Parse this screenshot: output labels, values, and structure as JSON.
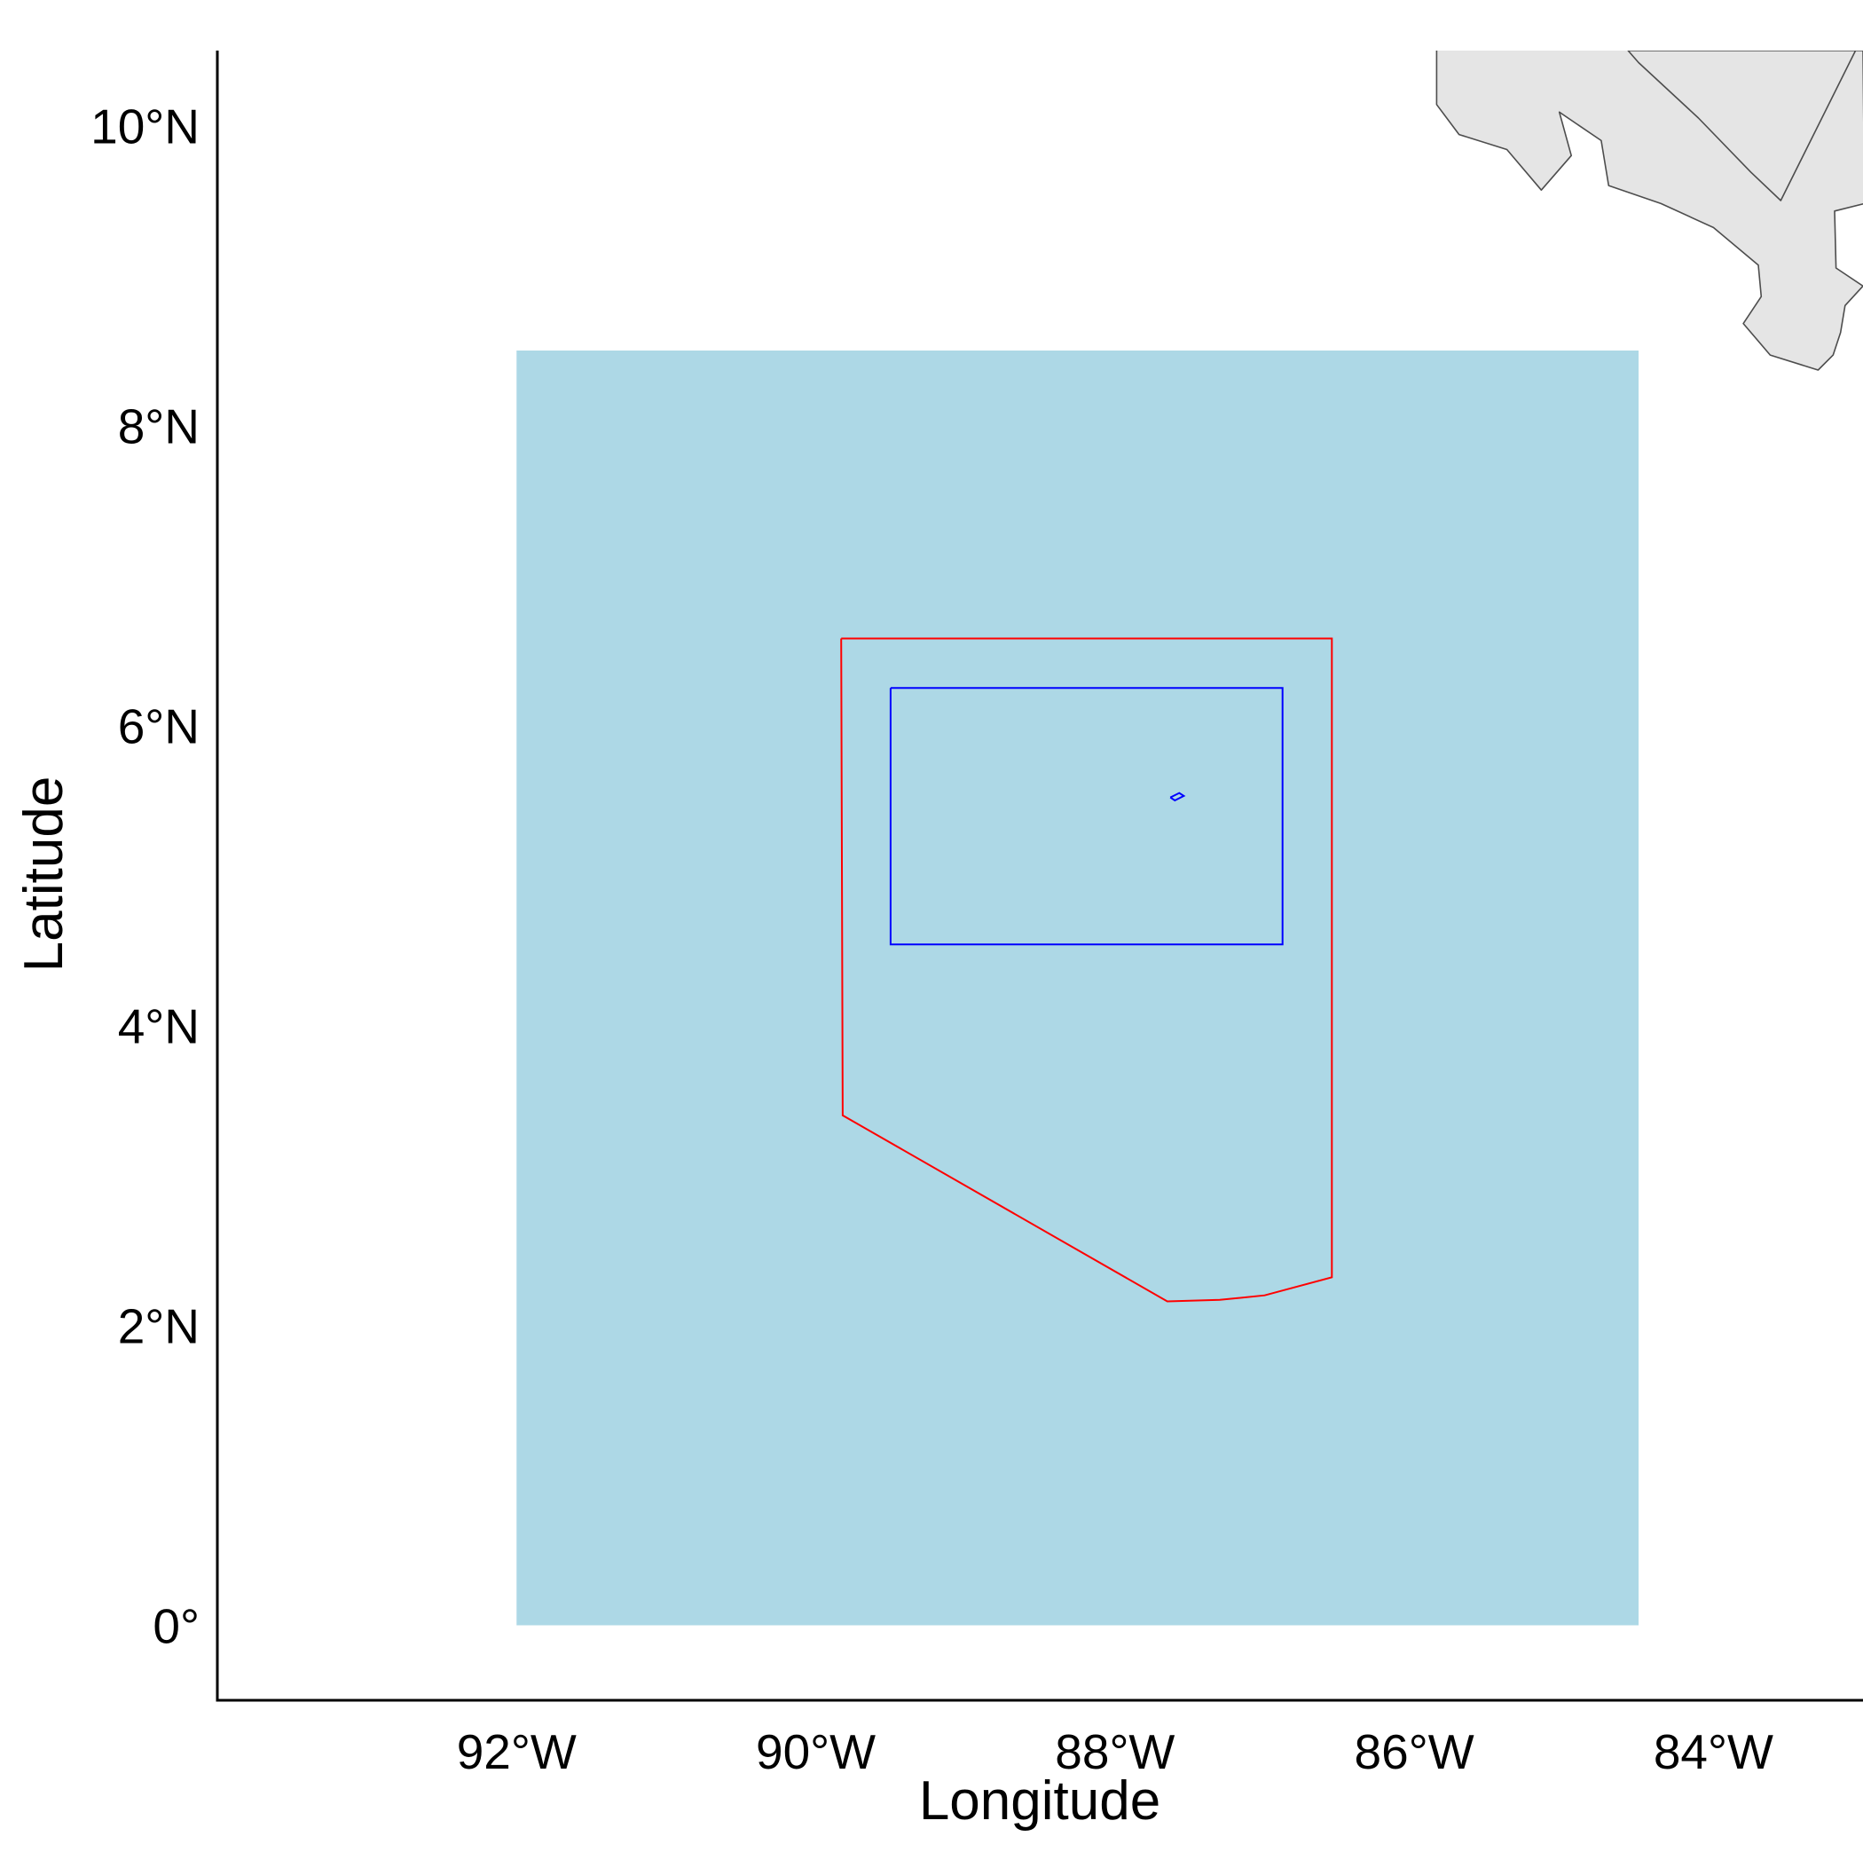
{
  "map": {
    "xlabel": "Longitude",
    "ylabel": "Latitude",
    "x_ticks": [
      {
        "value": -92,
        "label": "92°W"
      },
      {
        "value": -90,
        "label": "90°W"
      },
      {
        "value": -88,
        "label": "88°W"
      },
      {
        "value": -86,
        "label": "86°W"
      },
      {
        "value": -84,
        "label": "84°W"
      }
    ],
    "y_ticks": [
      {
        "value": 0,
        "label": "0°"
      },
      {
        "value": 2,
        "label": "2°N"
      },
      {
        "value": 4,
        "label": "4°N"
      },
      {
        "value": 6,
        "label": "6°N"
      },
      {
        "value": 8,
        "label": "8°N"
      },
      {
        "value": 10,
        "label": "10°N"
      }
    ],
    "xlim": [
      -94.0,
      -83.0
    ],
    "ylim": [
      -0.5,
      10.5
    ],
    "colors": {
      "study_area_fill": "#add8e6",
      "land_fill": "#e5e5e5",
      "land_stroke": "#4d4d4d",
      "outer_boundary": "#ff0000",
      "inner_boundary": "#0000ff",
      "axis": "#000000"
    },
    "study_area": {
      "lon_min": -92.0,
      "lon_max": -84.5,
      "lat_min": 0.0,
      "lat_max": 8.5
    },
    "outer_boundary": [
      [
        -89.83,
        6.58
      ],
      [
        -86.55,
        6.58
      ],
      [
        -86.55,
        2.32
      ],
      [
        -87.0,
        2.2
      ],
      [
        -87.3,
        2.17
      ],
      [
        -87.65,
        2.16
      ],
      [
        -89.82,
        3.4
      ],
      [
        -89.83,
        6.58
      ]
    ],
    "inner_boundary": [
      [
        -89.5,
        6.25
      ],
      [
        -86.88,
        6.25
      ],
      [
        -86.88,
        4.54
      ],
      [
        -89.5,
        4.54
      ],
      [
        -89.5,
        6.25
      ]
    ],
    "island": [
      [
        -87.63,
        5.52
      ],
      [
        -87.57,
        5.55
      ],
      [
        -87.54,
        5.53
      ],
      [
        -87.6,
        5.5
      ],
      [
        -87.63,
        5.52
      ]
    ],
    "land": [
      [
        -85.85,
        10.5
      ],
      [
        -85.85,
        10.14
      ],
      [
        -85.7,
        9.94
      ],
      [
        -85.38,
        9.84
      ],
      [
        -85.15,
        9.57
      ],
      [
        -84.95,
        9.8
      ],
      [
        -85.03,
        10.09
      ],
      [
        -84.75,
        9.9
      ],
      [
        -84.7,
        9.6
      ],
      [
        -84.35,
        9.48
      ],
      [
        -84.0,
        9.32
      ],
      [
        -83.7,
        9.07
      ],
      [
        -83.68,
        8.86
      ],
      [
        -83.8,
        8.68
      ],
      [
        -83.62,
        8.47
      ],
      [
        -83.3,
        8.37
      ],
      [
        -83.2,
        8.47
      ],
      [
        -83.15,
        8.62
      ],
      [
        -83.12,
        8.8
      ],
      [
        -83.0,
        8.93
      ],
      [
        -83.18,
        9.05
      ],
      [
        -83.19,
        9.43
      ],
      [
        -82.99,
        9.48
      ],
      [
        -83.0,
        10.5
      ],
      [
        -83.5,
        10.5
      ],
      [
        -83.5,
        10.5
      ],
      [
        -83.5,
        10.5
      ],
      [
        -84.57,
        10.5
      ],
      [
        -84.5,
        10.42
      ],
      [
        -84.1,
        10.05
      ],
      [
        -83.75,
        9.69
      ],
      [
        -83.55,
        9.5
      ]
    ]
  }
}
